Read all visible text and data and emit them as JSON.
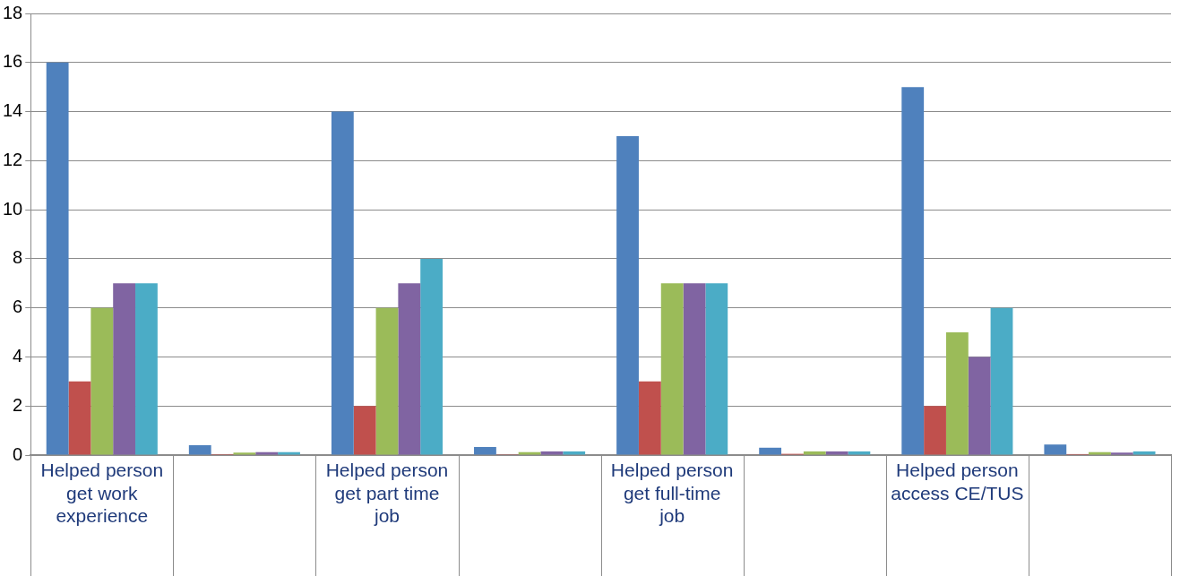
{
  "chart_data": {
    "type": "bar",
    "categories": [
      "Helped person get work experience",
      null,
      "Helped person get part time job",
      null,
      "Helped person get full-time job",
      null,
      "Helped person access CE/TUS",
      null
    ],
    "series": [
      {
        "color": "#4f81bd",
        "values": [
          16,
          0.4,
          14,
          0.33,
          13,
          0.3,
          15,
          0.43
        ]
      },
      {
        "color": "#c0504d",
        "values": [
          3,
          0.04,
          2,
          0.03,
          3,
          0.05,
          2,
          0.04
        ]
      },
      {
        "color": "#9bbb59",
        "values": [
          6,
          0.1,
          6,
          0.12,
          7,
          0.15,
          5,
          0.12
        ]
      },
      {
        "color": "#8064a2",
        "values": [
          7,
          0.12,
          7,
          0.15,
          7,
          0.15,
          4,
          0.1
        ]
      },
      {
        "color": "#4bacc6",
        "values": [
          7,
          0.12,
          8,
          0.15,
          7,
          0.15,
          6,
          0.15
        ]
      }
    ],
    "ylim": [
      0,
      18
    ],
    "yticks": [
      0,
      2,
      4,
      6,
      8,
      10,
      12,
      14,
      16,
      18
    ],
    "grid": "y",
    "legend": false
  }
}
